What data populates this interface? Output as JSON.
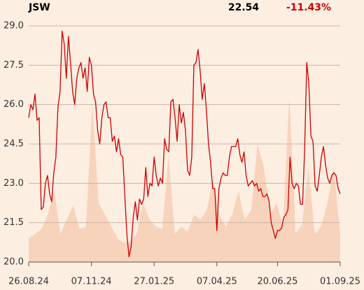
{
  "chart_data": {
    "type": "line",
    "title": "JSW",
    "price": 22.54,
    "change": "-11.43%",
    "series": [
      {
        "name": "JSW",
        "color": "#cc0000",
        "values": [
          25.5,
          26.0,
          25.8,
          26.4,
          25.4,
          25.5,
          22.0,
          22.1,
          23.0,
          23.3,
          22.6,
          22.3,
          23.4,
          24.0,
          25.9,
          26.5,
          28.8,
          28.3,
          27.0,
          28.6,
          27.6,
          26.5,
          26.0,
          27.0,
          27.4,
          27.6,
          27.0,
          27.4,
          26.5,
          27.8,
          27.5,
          26.4,
          26.1,
          25.0,
          24.5,
          25.5,
          26.0,
          26.1,
          25.5,
          25.5,
          24.6,
          24.8,
          24.2,
          24.7,
          24.1,
          24.0,
          22.5,
          21.0,
          20.2,
          20.6,
          21.7,
          22.3,
          21.6,
          22.4,
          22.2,
          22.4,
          23.6,
          22.5,
          23.0,
          22.9,
          24.0,
          23.3,
          22.9,
          23.2,
          23.0,
          24.7,
          24.3,
          24.2,
          26.1,
          26.2,
          25.5,
          24.6,
          26.0,
          25.3,
          25.7,
          25.0,
          23.5,
          23.3,
          24.0,
          27.5,
          27.6,
          28.1,
          27.3,
          26.2,
          26.8,
          25.8,
          24.5,
          23.8,
          22.8,
          22.8,
          21.2,
          22.8,
          23.2,
          23.4,
          23.3,
          23.3,
          24.0,
          24.4,
          24.4,
          24.4,
          24.7,
          24.1,
          23.8,
          24.2,
          23.3,
          22.9,
          23.0,
          23.1,
          22.9,
          23.0,
          22.7,
          22.8,
          22.5,
          22.5,
          22.6,
          22.3,
          21.5,
          21.2,
          20.9,
          21.2,
          21.2,
          21.3,
          21.7,
          21.8,
          22.0,
          24.0,
          23.0,
          22.8,
          23.0,
          22.9,
          22.2,
          22.2,
          24.3,
          27.6,
          26.8,
          24.8,
          24.6,
          22.9,
          22.7,
          23.3,
          24.0,
          24.4,
          23.7,
          23.2,
          23.0,
          23.3,
          23.4,
          23.3,
          22.8,
          22.6
        ]
      },
      {
        "type": "area",
        "axis": "y2",
        "color": "#f8d3bb",
        "values": [
          10,
          12,
          14,
          20,
          30,
          12,
          18,
          24,
          14,
          15,
          67,
          25,
          20,
          15,
          10,
          8,
          9,
          12,
          25,
          18,
          15,
          14,
          45,
          12,
          15,
          13,
          20,
          18,
          22,
          35,
          20,
          15,
          20,
          30,
          18,
          22,
          50,
          40,
          20,
          25,
          15,
          70,
          12,
          16,
          40,
          12,
          15,
          25,
          40,
          12
        ]
      }
    ],
    "xlim": [
      0,
      149
    ],
    "xticks": [
      {
        "value": 0,
        "label": "26.08.24"
      },
      {
        "value": 30,
        "label": "07.11.24"
      },
      {
        "value": 60,
        "label": "27.01.25"
      },
      {
        "value": 90,
        "label": "07.04.25"
      },
      {
        "value": 119,
        "label": "20.06.25"
      },
      {
        "value": 149,
        "label": "01.09.25"
      }
    ],
    "ylim": [
      20,
      29
    ],
    "yticks": [
      {
        "value": 20,
        "label": "20.0"
      },
      {
        "value": 21.5,
        "label": "21.5"
      },
      {
        "value": 23,
        "label": "23.0"
      },
      {
        "value": 24.5,
        "label": "24.5"
      },
      {
        "value": 26,
        "label": "26.0"
      },
      {
        "value": 27.5,
        "label": "27.5"
      },
      {
        "value": 29,
        "label": "29.0"
      }
    ],
    "y2lim": [
      0,
      100
    ],
    "grid": true
  }
}
